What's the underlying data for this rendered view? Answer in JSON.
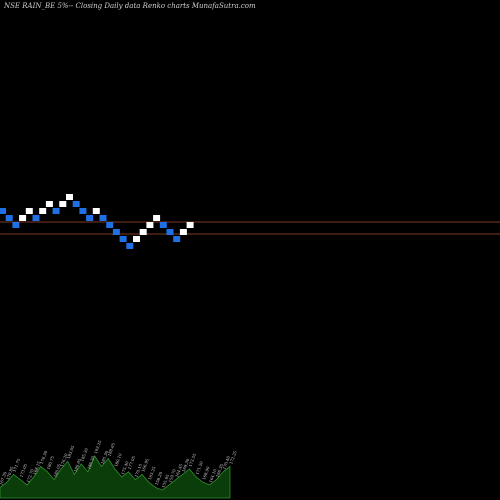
{
  "header": {
    "title": "NSE RAIN_BE 5%-- Closing Daily data Renko charts MunafaSutra.com"
  },
  "colors": {
    "background": "#000000",
    "up_brick": "#ffffff",
    "down_brick": "#1f6fe5",
    "reference_line": "#7a3b1f",
    "volume_fill": "#0b3d0b",
    "volume_stroke": "#2f8f2f"
  },
  "chart_data": {
    "type": "renko",
    "bricks": [
      {
        "dir": "down",
        "level": 2
      },
      {
        "dir": "down",
        "level": 1
      },
      {
        "dir": "down",
        "level": 0
      },
      {
        "dir": "up",
        "level": 1
      },
      {
        "dir": "up",
        "level": 2
      },
      {
        "dir": "down",
        "level": 1
      },
      {
        "dir": "up",
        "level": 2
      },
      {
        "dir": "up",
        "level": 3
      },
      {
        "dir": "down",
        "level": 2
      },
      {
        "dir": "up",
        "level": 3
      },
      {
        "dir": "up",
        "level": 4
      },
      {
        "dir": "down",
        "level": 3
      },
      {
        "dir": "down",
        "level": 2
      },
      {
        "dir": "down",
        "level": 1
      },
      {
        "dir": "up",
        "level": 2
      },
      {
        "dir": "down",
        "level": 1
      },
      {
        "dir": "down",
        "level": 0
      },
      {
        "dir": "down",
        "level": -1
      },
      {
        "dir": "down",
        "level": -2
      },
      {
        "dir": "down",
        "level": -3
      },
      {
        "dir": "up",
        "level": -2
      },
      {
        "dir": "up",
        "level": -1
      },
      {
        "dir": "up",
        "level": 0
      },
      {
        "dir": "up",
        "level": 1
      },
      {
        "dir": "down",
        "level": 0
      },
      {
        "dir": "down",
        "level": -1
      },
      {
        "dir": "down",
        "level": -2
      },
      {
        "dir": "up",
        "level": -1
      },
      {
        "dir": "up",
        "level": 0
      }
    ],
    "reference_lines": [
      1,
      -1
    ],
    "volume_labels": [
      "167.30",
      "170.85",
      "171.75",
      "173.05",
      "172.70",
      "168.15",
      "176.30",
      "180.75",
      "180.05",
      "176.20",
      "183.05",
      "180.65",
      "185.20",
      "186.30",
      "193.25",
      "185.30",
      "188.65",
      "180.10",
      "175.40",
      "177.05",
      "170.15",
      "166.95",
      "163.25",
      "158.20",
      "155.05",
      "159.70",
      "164.45",
      "169.30",
      "173.55",
      "171.20",
      "168.90",
      "164.10",
      "166.35",
      "170.40",
      "172.25"
    ],
    "volume_values": [
      4,
      6,
      9,
      7,
      5,
      8,
      12,
      10,
      7,
      11,
      14,
      9,
      13,
      10,
      16,
      12,
      15,
      11,
      8,
      10,
      7,
      9,
      6,
      4,
      3,
      5,
      7,
      9,
      11,
      8,
      6,
      5,
      7,
      10,
      12
    ]
  }
}
